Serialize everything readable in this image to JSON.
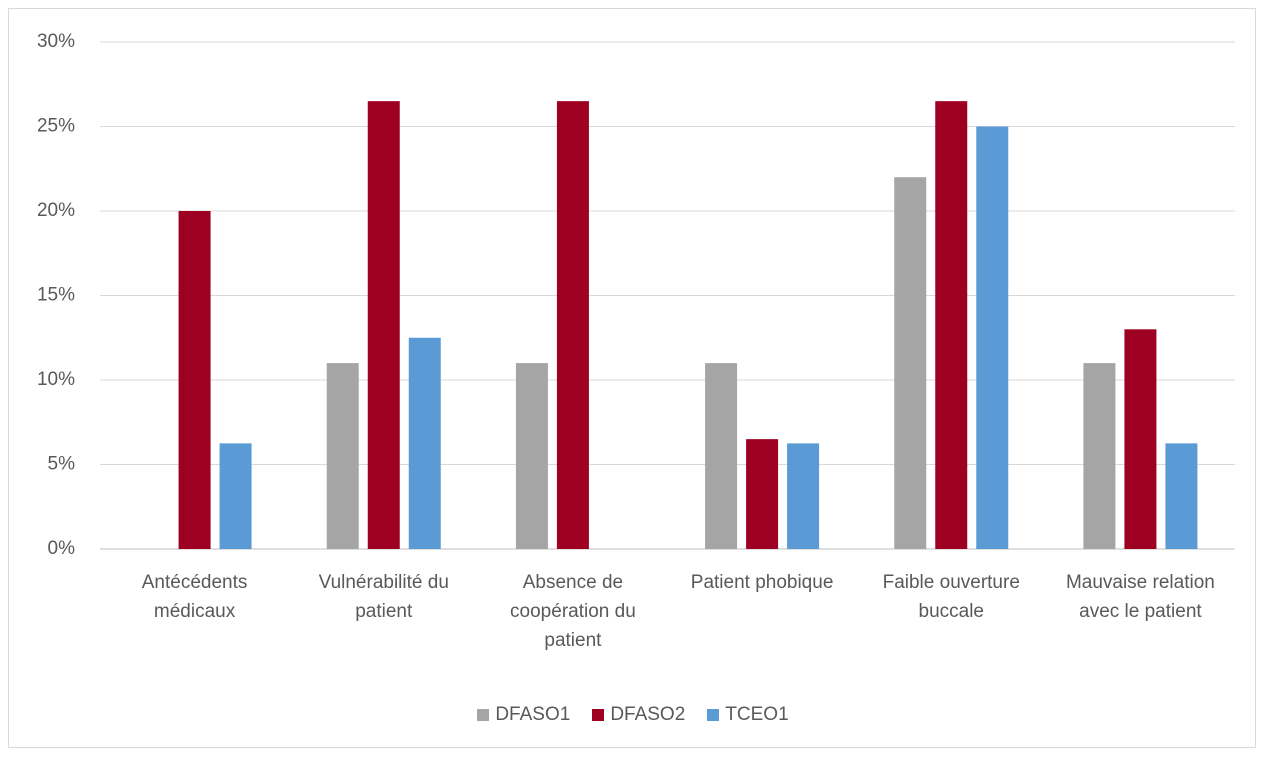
{
  "chart_data": {
    "type": "bar",
    "categories": [
      "Antécédents médicaux",
      "Vulnérabilité du patient",
      "Absence de coopération du patient",
      "Patient phobique",
      "Faible ouverture buccale",
      "Mauvaise relation avec le patient"
    ],
    "series": [
      {
        "name": "DFASO1",
        "color": "#a5a5a5",
        "values": [
          0,
          11,
          11,
          11,
          22,
          11
        ]
      },
      {
        "name": "DFASO2",
        "color": "#9e0022",
        "values": [
          20,
          26.5,
          26.5,
          6.5,
          26.5,
          13
        ]
      },
      {
        "name": "TCEO1",
        "color": "#5b9bd5",
        "values": [
          6.25,
          12.5,
          0,
          6.25,
          25,
          6.25
        ]
      }
    ],
    "ylim": [
      0,
      30
    ],
    "yticks": [
      {
        "value": 0,
        "label": "0%"
      },
      {
        "value": 5,
        "label": "5%"
      },
      {
        "value": 10,
        "label": "10%"
      },
      {
        "value": 15,
        "label": "15%"
      },
      {
        "value": 20,
        "label": "20%"
      },
      {
        "value": 25,
        "label": "25%"
      },
      {
        "value": 30,
        "label": "30%"
      }
    ],
    "grid": true,
    "legend": "bottom"
  }
}
